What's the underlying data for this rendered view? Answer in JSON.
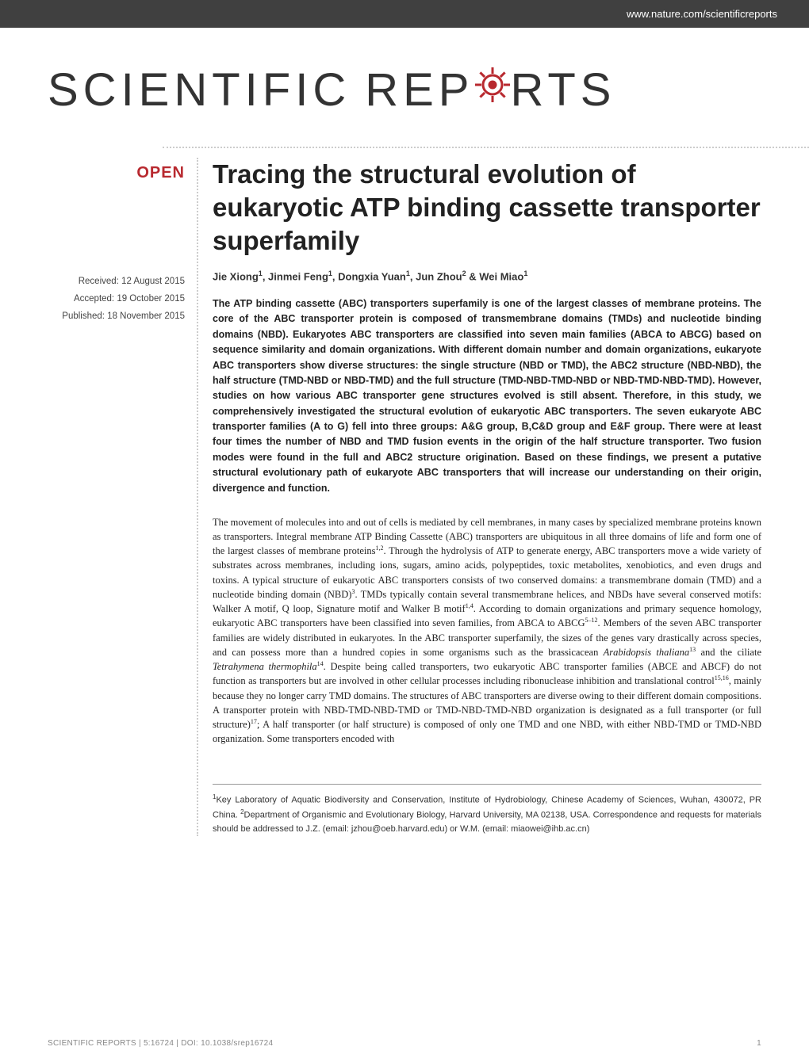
{
  "header_url": "www.nature.com/scientificreports",
  "logo": {
    "part1": "SCIENTIFIC",
    "part2": "REP",
    "part3": "RTS"
  },
  "open_badge": "OPEN",
  "dates": {
    "received": "Received: 12 August 2015",
    "accepted": "Accepted: 19 October 2015",
    "published": "Published: 18 November 2015"
  },
  "title": "Tracing the structural evolution of eukaryotic ATP binding cassette transporter superfamily",
  "authors_html": "Jie Xiong<sup>1</sup>, Jinmei Feng<sup>1</sup>, Dongxia Yuan<sup>1</sup>, Jun Zhou<sup>2</sup> & Wei Miao<sup>1</sup>",
  "abstract": "The ATP binding cassette (ABC) transporters superfamily is one of the largest classes of membrane proteins. The core of the ABC transporter protein is composed of transmembrane domains (TMDs) and nucleotide binding domains (NBD). Eukaryotes ABC transporters are classified into seven main families (ABCA to ABCG) based on sequence similarity and domain organizations. With different domain number and domain organizations, eukaryote ABC transporters show diverse structures: the single structure (NBD or TMD), the ABC2 structure (NBD-NBD), the half structure (TMD-NBD or NBD-TMD) and the full structure (TMD-NBD-TMD-NBD or NBD-TMD-NBD-TMD). However, studies on how various ABC transporter gene structures evolved is still absent. Therefore, in this study, we comprehensively investigated the structural evolution of eukaryotic ABC transporters. The seven eukaryote ABC transporter families (A to G) fell into three groups: A&G group, B,C&D group and E&F group. There were at least four times the number of NBD and TMD fusion events in the origin of the half structure transporter. Two fusion modes were found in the full and ABC2 structure origination. Based on these findings, we present a putative structural evolutionary path of eukaryote ABC transporters that will increase our understanding on their origin, divergence and function.",
  "body_html": "The movement of molecules into and out of cells is mediated by cell membranes, in many cases by specialized membrane proteins known as transporters. Integral membrane ATP Binding Cassette (ABC) transporters are ubiquitous in all three domains of life and form one of the largest classes of membrane proteins<sup>1,2</sup>. Through the hydrolysis of ATP to generate energy, ABC transporters move a wide variety of substrates across membranes, including ions, sugars, amino acids, polypeptides, toxic metabolites, xenobiotics, and even drugs and toxins. A typical structure of eukaryotic ABC transporters consists of two conserved domains: a transmembrane domain (TMD) and a nucleotide binding domain (NBD)<sup>3</sup>. TMDs typically contain several transmembrane helices, and NBDs have several conserved motifs: Walker A motif, Q loop, Signature motif and Walker B motif<sup>1,4</sup>. According to domain organizations and primary sequence homology, eukaryotic ABC transporters have been classified into seven families, from ABCA to ABCG<sup>5–12</sup>. Members of the seven ABC transporter families are widely distributed in eukaryotes. In the ABC transporter superfamily, the sizes of the genes vary drastically across species, and can possess more than a hundred copies in some organisms such as the brassicacean <em>Arabidopsis thaliana</em><sup>13</sup> and the ciliate <em>Tetrahymena thermophila</em><sup>14</sup>. Despite being called transporters, two eukaryotic ABC transporter families (ABCE and ABCF) do not function as transporters but are involved in other cellular processes including ribonuclease inhibition and translational control<sup>15,16</sup>, mainly because they no longer carry TMD domains. The structures of ABC transporters are diverse owing to their different domain compositions. A transporter protein with NBD-TMD-NBD-TMD or TMD-NBD-TMD-NBD organization is designated as a full transporter (or full structure)<sup>17</sup>; A half transporter (or half structure) is composed of only one TMD and one NBD, with either NBD-TMD or TMD-NBD organization. Some transporters encoded with",
  "affiliations_html": "<sup>1</sup>Key Laboratory of Aquatic Biodiversity and Conservation, Institute of Hydrobiology, Chinese Academy of Sciences, Wuhan, 430072, PR China. <sup>2</sup>Department of Organismic and Evolutionary Biology, Harvard University, MA 02138, USA. Correspondence and requests for materials should be addressed to J.Z. (email: jzhou@oeb.harvard.edu) or W.M. (email: miaowei@ihb.ac.cn)",
  "footer": {
    "citation": "SCIENTIFIC REPORTS | 5:16724 | DOI: 10.1038/srep16724",
    "page": "1"
  },
  "colors": {
    "header_bg": "#404040",
    "accent": "#b8292f",
    "text": "#222222",
    "grey": "#888888"
  }
}
